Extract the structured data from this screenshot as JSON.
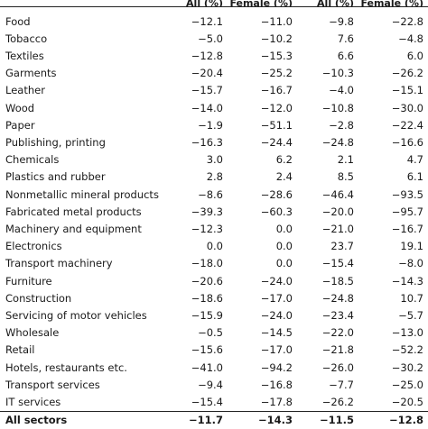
{
  "header": [
    "",
    "All (%)",
    "Female (%)",
    "All (%)",
    "Female (%)"
  ],
  "rows": [
    {
      "sector": "Food",
      "all_1": "−12.1",
      "female_1": "−11.0",
      "all_2": "−9.8",
      "female_2": "−22.8"
    },
    {
      "sector": "Tobacco",
      "all_1": "−5.0",
      "female_1": "−10.2",
      "all_2": "7.6",
      "female_2": "−4.8"
    },
    {
      "sector": "Textiles",
      "all_1": "−12.8",
      "female_1": "−15.3",
      "all_2": "6.6",
      "female_2": "6.0"
    },
    {
      "sector": "Garments",
      "all_1": "−20.4",
      "female_1": "−25.2",
      "all_2": "−10.3",
      "female_2": "−26.2"
    },
    {
      "sector": "Leather",
      "all_1": "−15.7",
      "female_1": "−16.7",
      "all_2": "−4.0",
      "female_2": "−15.1"
    },
    {
      "sector": "Wood",
      "all_1": "−14.0",
      "female_1": "−12.0",
      "all_2": "−10.8",
      "female_2": "−30.0"
    },
    {
      "sector": "Paper",
      "all_1": "−1.9",
      "female_1": "−51.1",
      "all_2": "−2.8",
      "female_2": "−22.4"
    },
    {
      "sector": "Publishing, printing",
      "all_1": "−16.3",
      "female_1": "−24.4",
      "all_2": "−24.8",
      "female_2": "−16.6"
    },
    {
      "sector": "Chemicals",
      "all_1": "3.0",
      "female_1": "6.2",
      "all_2": "2.1",
      "female_2": "4.7"
    },
    {
      "sector": "Plastics and rubber",
      "all_1": "2.8",
      "female_1": "2.4",
      "all_2": "8.5",
      "female_2": "6.1"
    },
    {
      "sector": "Nonmetallic mineral products",
      "all_1": "−8.6",
      "female_1": "−28.6",
      "all_2": "−46.4",
      "female_2": "−93.5"
    },
    {
      "sector": "Fabricated metal products",
      "all_1": "−39.3",
      "female_1": "−60.3",
      "all_2": "−20.0",
      "female_2": "−95.7"
    },
    {
      "sector": "Machinery and equipment",
      "all_1": "−12.3",
      "female_1": "0.0",
      "all_2": "−21.0",
      "female_2": "−16.7"
    },
    {
      "sector": "Electronics",
      "all_1": "0.0",
      "female_1": "0.0",
      "all_2": "23.7",
      "female_2": "19.1"
    },
    {
      "sector": "Transport machinery",
      "all_1": "−18.0",
      "female_1": "0.0",
      "all_2": "−15.4",
      "female_2": "−8.0"
    },
    {
      "sector": "Furniture",
      "all_1": "−20.6",
      "female_1": "−24.0",
      "all_2": "−18.5",
      "female_2": "−14.3"
    },
    {
      "sector": "Construction",
      "all_1": "−18.6",
      "female_1": "−17.0",
      "all_2": "−24.8",
      "female_2": "10.7"
    },
    {
      "sector": "Servicing of motor vehicles",
      "all_1": "−15.9",
      "female_1": "−24.0",
      "all_2": "−23.4",
      "female_2": "−5.7"
    },
    {
      "sector": "Wholesale",
      "all_1": "−0.5",
      "female_1": "−14.5",
      "all_2": "−22.0",
      "female_2": "−13.0"
    },
    {
      "sector": "Retail",
      "all_1": "−15.6",
      "female_1": "−17.0",
      "all_2": "−21.8",
      "female_2": "−52.2"
    },
    {
      "sector": "Hotels, restaurants etc.",
      "all_1": "−41.0",
      "female_1": "−94.2",
      "all_2": "−26.0",
      "female_2": "−30.2"
    },
    {
      "sector": "Transport services",
      "all_1": "−9.4",
      "female_1": "−16.8",
      "all_2": "−7.7",
      "female_2": "−25.0"
    },
    {
      "sector": "IT services",
      "all_1": "−15.4",
      "female_1": "−17.8",
      "all_2": "−26.2",
      "female_2": "−20.5"
    }
  ],
  "total": {
    "sector": "All sectors",
    "all_1": "−11.7",
    "female_1": "−14.3",
    "all_2": "−11.5",
    "female_2": "−12.8"
  }
}
